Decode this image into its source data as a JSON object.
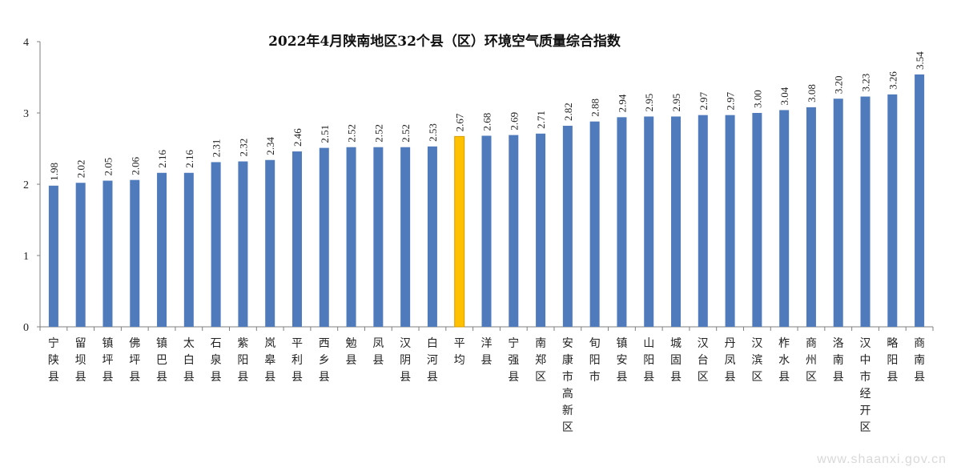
{
  "chart_data": {
    "type": "bar",
    "title": "2022年4月陕南地区32个县（区）环境空气质量综合指数",
    "xlabel": "",
    "ylabel": "",
    "ylim": [
      0,
      4
    ],
    "yticks": [
      0,
      1,
      2,
      3,
      4
    ],
    "grid": false,
    "bar_color": "#4f7bbd",
    "highlight_color": "#ffc000",
    "highlight_category": "平均",
    "categories": [
      "宁陕县",
      "留坝县",
      "镇坪县",
      "佛坪县",
      "镇巴县",
      "太白县",
      "石泉县",
      "紫阳县",
      "岚皋县",
      "平利县",
      "西乡县",
      "勉县",
      "凤县",
      "汉阴县",
      "白河县",
      "平均",
      "洋县",
      "宁强县",
      "南郑区",
      "安康市高新区",
      "旬阳市",
      "镇安县",
      "山阳县",
      "城固县",
      "汉台区",
      "丹凤县",
      "汉滨区",
      "柞水县",
      "商州区",
      "洛南县",
      "汉中市经开区",
      "略阳县",
      "商南县"
    ],
    "value_labels": [
      "1.98",
      "2.02",
      "2.05",
      "2.06",
      "2.16",
      "2.16",
      "2.31",
      "2.32",
      "2.34",
      "2.46",
      "2.51",
      "2.52",
      "2.52",
      "2.52",
      "2.53",
      "2.67",
      "2.68",
      "2.69",
      "2.71",
      "2.82",
      "2.88",
      "2.94",
      "2.95",
      "2.95",
      "2.97",
      "2.97",
      "3.00",
      "3.04",
      "3.08",
      "3.20",
      "3.23",
      "3.26",
      "3.54"
    ],
    "values": [
      1.98,
      2.02,
      2.05,
      2.06,
      2.16,
      2.16,
      2.31,
      2.32,
      2.34,
      2.46,
      2.51,
      2.52,
      2.52,
      2.52,
      2.53,
      2.67,
      2.68,
      2.69,
      2.71,
      2.82,
      2.88,
      2.94,
      2.95,
      2.95,
      2.97,
      2.97,
      3.0,
      3.04,
      3.08,
      3.2,
      3.23,
      3.26,
      3.54
    ]
  },
  "watermark": "www.shaanxi.gov.cn"
}
